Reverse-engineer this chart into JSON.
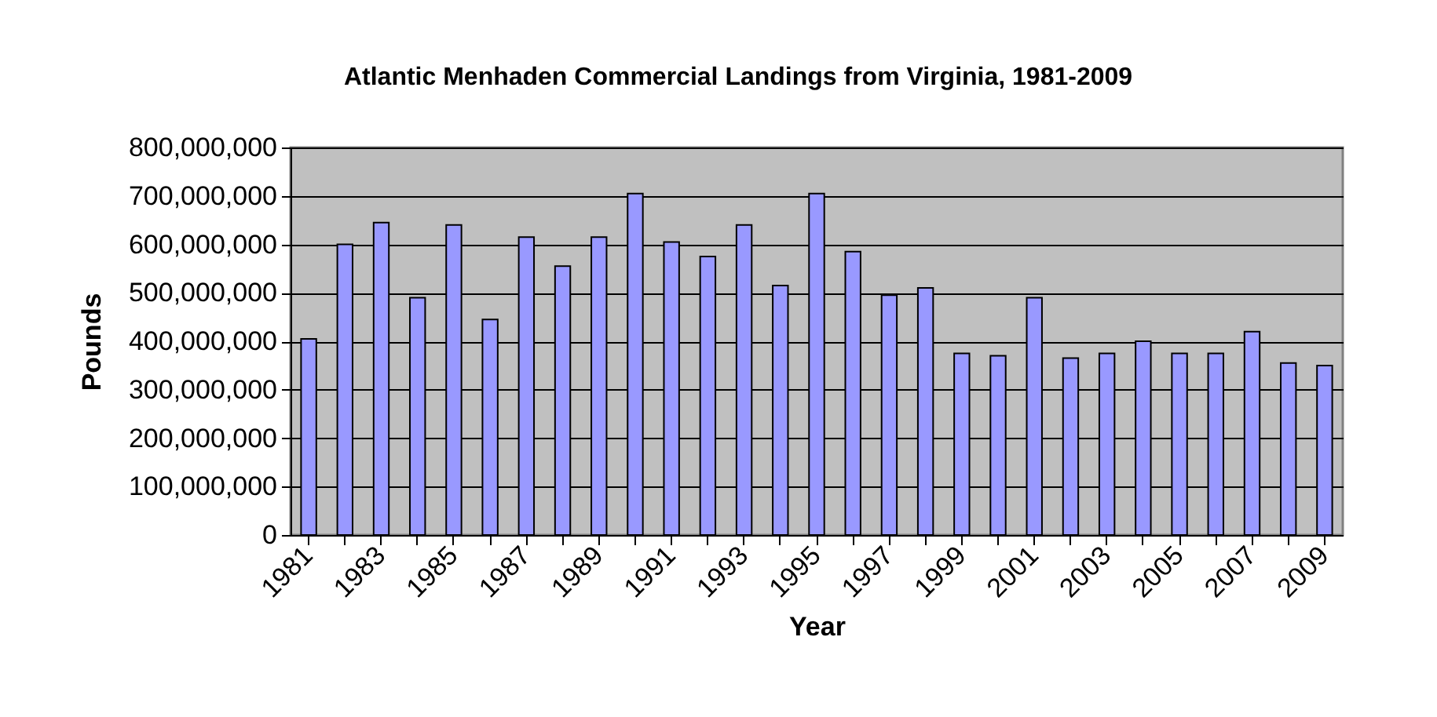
{
  "chart_data": {
    "type": "bar",
    "title": "Atlantic Menhaden Commercial Landings from Virginia, 1981-2009",
    "xlabel": "Year",
    "ylabel": "Pounds",
    "categories": [
      "1981",
      null,
      "1983",
      null,
      "1985",
      null,
      "1987",
      null,
      "1989",
      null,
      "1991",
      null,
      "1993",
      null,
      "1995",
      null,
      "1997",
      null,
      "1999",
      null,
      "2001",
      null,
      "2003",
      null,
      "2005",
      null,
      "2007",
      null,
      "2009"
    ],
    "values": [
      405000000,
      600000000,
      645000000,
      490000000,
      640000000,
      445000000,
      615000000,
      555000000,
      615000000,
      705000000,
      605000000,
      575000000,
      640000000,
      515000000,
      705000000,
      585000000,
      495000000,
      510000000,
      375000000,
      370000000,
      490000000,
      365000000,
      375000000,
      400000000,
      375000000,
      375000000,
      420000000,
      355000000,
      350000000
    ],
    "color": "#9999ff",
    "ylim": [
      0,
      800000000
    ],
    "yticks": [
      0,
      {
        "value": 100000000,
        "label": "100,000,000"
      },
      {
        "value": 200000000,
        "label": "200,000,000"
      },
      {
        "value": 300000000,
        "label": "300,000,000"
      },
      {
        "value": 400000000,
        "label": "400,000,000"
      },
      {
        "value": 500000000,
        "label": "500,000,000"
      },
      {
        "value": 600000000,
        "label": "600,000,000"
      },
      {
        "value": 700000000,
        "label": "700,000,000"
      },
      {
        "value": 800000000,
        "label": "800,000,000"
      }
    ],
    "grid": "y"
  }
}
